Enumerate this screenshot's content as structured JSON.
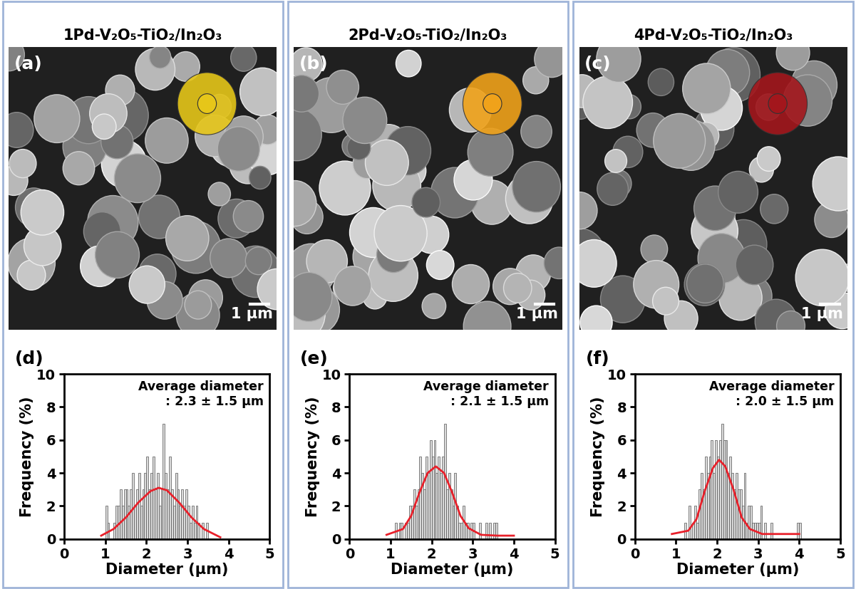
{
  "chart_data": [
    {
      "type": "image",
      "title": "1Pd-V₂O₅-TiO₂/In₂O₃",
      "annotations": [
        "(a)",
        "1 µm"
      ],
      "color": "#e6c619"
    },
    {
      "type": "image",
      "title": "2Pd-V₂O₅-TiO₂/In₂O₃",
      "annotations": [
        "(b)",
        "1 µm"
      ],
      "color": "#f0a21a"
    },
    {
      "type": "image",
      "title": "4Pd-V₂O₅-TiO₂/In₂O₃",
      "annotations": [
        "(c)",
        "1 µm"
      ],
      "color": "#a3161c"
    },
    {
      "type": "histogram",
      "x_label": "Diameter (µm)",
      "y_label": "Frequency (%)",
      "annotations": [
        "(d)",
        "Average diameter\n: 2.3 ± 1.5 µm"
      ],
      "color": "#d9d9d9",
      "bins": [
        1.0,
        1.05,
        1.1,
        1.15,
        1.2,
        1.25,
        1.3,
        1.35,
        1.4,
        1.45,
        1.5,
        1.55,
        1.6,
        1.65,
        1.7,
        1.75,
        1.8,
        1.85,
        1.9,
        1.95,
        2.0,
        2.05,
        2.1,
        2.15,
        2.2,
        2.25,
        2.3,
        2.35,
        2.4,
        2.45,
        2.5,
        2.55,
        2.6,
        2.65,
        2.7,
        2.75,
        2.8,
        2.85,
        2.9,
        2.95,
        3.0,
        3.05,
        3.1,
        3.15,
        3.2,
        3.25,
        3.3,
        3.35,
        3.4,
        3.45,
        3.5
      ],
      "counts": [
        2,
        1,
        0,
        0,
        1,
        2,
        2,
        3,
        2,
        3,
        3,
        2,
        3,
        4,
        2,
        3,
        4,
        2,
        3,
        4,
        5,
        3,
        4,
        5,
        3,
        4,
        2,
        3,
        7,
        4,
        3,
        5,
        3,
        2,
        4,
        3,
        2,
        3,
        2,
        3,
        2,
        1,
        2,
        1,
        2,
        1,
        0,
        1,
        0,
        1
      ],
      "series": [
        {
          "type": "line",
          "color": "#e8202a",
          "x": [
            0.9,
            1.2,
            1.5,
            1.8,
            2.1,
            2.3,
            2.5,
            2.8,
            3.1,
            3.4,
            3.8
          ],
          "values": [
            0.2,
            0.6,
            1.3,
            2.2,
            2.9,
            3.1,
            2.95,
            2.2,
            1.3,
            0.6,
            0.1
          ]
        }
      ],
      "xlim": [
        0,
        5
      ],
      "xticks": [
        0,
        1,
        2,
        3,
        4,
        5
      ],
      "ylim": [
        0,
        10
      ],
      "yticks": [
        0,
        2,
        4,
        6,
        8,
        10
      ]
    },
    {
      "type": "histogram",
      "x_label": "Diameter (µm)",
      "y_label": "Frequency (%)",
      "annotations": [
        "(e)",
        "Average diameter\n: 2.1 ± 1.5 µm"
      ],
      "color": "#d9d9d9",
      "bins": [
        1.1,
        1.15,
        1.2,
        1.25,
        1.3,
        1.35,
        1.4,
        1.45,
        1.5,
        1.55,
        1.6,
        1.65,
        1.7,
        1.75,
        1.8,
        1.85,
        1.9,
        1.95,
        2.0,
        2.05,
        2.1,
        2.15,
        2.2,
        2.25,
        2.3,
        2.35,
        2.4,
        2.45,
        2.5,
        2.55,
        2.6,
        2.65,
        2.7,
        2.75,
        2.8,
        2.85,
        2.9,
        2.95,
        3.0,
        3.05,
        3.1,
        3.15,
        3.2,
        3.25,
        3.3,
        3.35,
        3.4,
        3.45,
        3.5,
        3.55,
        3.6
      ],
      "counts": [
        1,
        0,
        1,
        1,
        0,
        1,
        1,
        2,
        2,
        3,
        2,
        3,
        5,
        4,
        3,
        5,
        4,
        6,
        5,
        6,
        4,
        5,
        4,
        5,
        7,
        3,
        4,
        3,
        2,
        4,
        2,
        1,
        1,
        2,
        1,
        1,
        0,
        1,
        1,
        0,
        0,
        1,
        0,
        0,
        1,
        0,
        1,
        0,
        1,
        1
      ],
      "series": [
        {
          "type": "line",
          "color": "#e8202a",
          "x": [
            0.9,
            1.3,
            1.5,
            1.7,
            1.9,
            2.1,
            2.3,
            2.5,
            2.7,
            2.9,
            3.2,
            3.6,
            4.0
          ],
          "values": [
            0.25,
            0.6,
            1.4,
            2.8,
            4.0,
            4.4,
            4.0,
            2.8,
            1.4,
            0.65,
            0.25,
            0.2,
            0.2
          ]
        }
      ],
      "xlim": [
        0,
        5
      ],
      "xticks": [
        0,
        1,
        2,
        3,
        4,
        5
      ],
      "ylim": [
        0,
        10
      ],
      "yticks": [
        0,
        2,
        4,
        6,
        8,
        10
      ]
    },
    {
      "type": "histogram",
      "x_label": "Diameter (µm)",
      "y_label": "Frequency (%)",
      "annotations": [
        "(f)",
        "Average diameter\n: 2.0 ± 1.5 µm"
      ],
      "color": "#d9d9d9",
      "bins": [
        1.2,
        1.25,
        1.3,
        1.35,
        1.4,
        1.45,
        1.5,
        1.55,
        1.6,
        1.65,
        1.7,
        1.75,
        1.8,
        1.85,
        1.9,
        1.95,
        2.0,
        2.05,
        2.1,
        2.15,
        2.2,
        2.25,
        2.3,
        2.35,
        2.4,
        2.45,
        2.5,
        2.55,
        2.6,
        2.65,
        2.7,
        2.75,
        2.8,
        2.85,
        2.9,
        2.95,
        3.0,
        3.05,
        3.1,
        3.15,
        3.2,
        3.25,
        3.3,
        3.35,
        3.4,
        3.45,
        3.5,
        3.55,
        3.6,
        3.65,
        3.7,
        3.75,
        3.8,
        3.85,
        3.9,
        3.95,
        4.0,
        4.05
      ],
      "counts": [
        1,
        0,
        2,
        0,
        1,
        2,
        1,
        3,
        4,
        3,
        5,
        4,
        5,
        6,
        4,
        6,
        5,
        6,
        7,
        6,
        6,
        4,
        5,
        4,
        3,
        4,
        3,
        3,
        2,
        4,
        1,
        2,
        2,
        1,
        1,
        1,
        1,
        2,
        0,
        1,
        0,
        0,
        1,
        0,
        0,
        0,
        0,
        0,
        0,
        0,
        0,
        0,
        0,
        0,
        0,
        1,
        1
      ],
      "series": [
        {
          "type": "line",
          "color": "#e8202a",
          "x": [
            0.9,
            1.3,
            1.5,
            1.7,
            1.9,
            2.05,
            2.2,
            2.4,
            2.6,
            2.8,
            3.1,
            3.5,
            4.0
          ],
          "values": [
            0.3,
            0.5,
            1.2,
            2.9,
            4.3,
            4.8,
            4.4,
            3.0,
            1.3,
            0.6,
            0.3,
            0.3,
            0.3
          ]
        }
      ],
      "xlim": [
        0,
        5
      ],
      "xticks": [
        0,
        1,
        2,
        3,
        4,
        5
      ],
      "ylim": [
        0,
        10
      ],
      "yticks": [
        0,
        2,
        4,
        6,
        8,
        10
      ]
    }
  ]
}
